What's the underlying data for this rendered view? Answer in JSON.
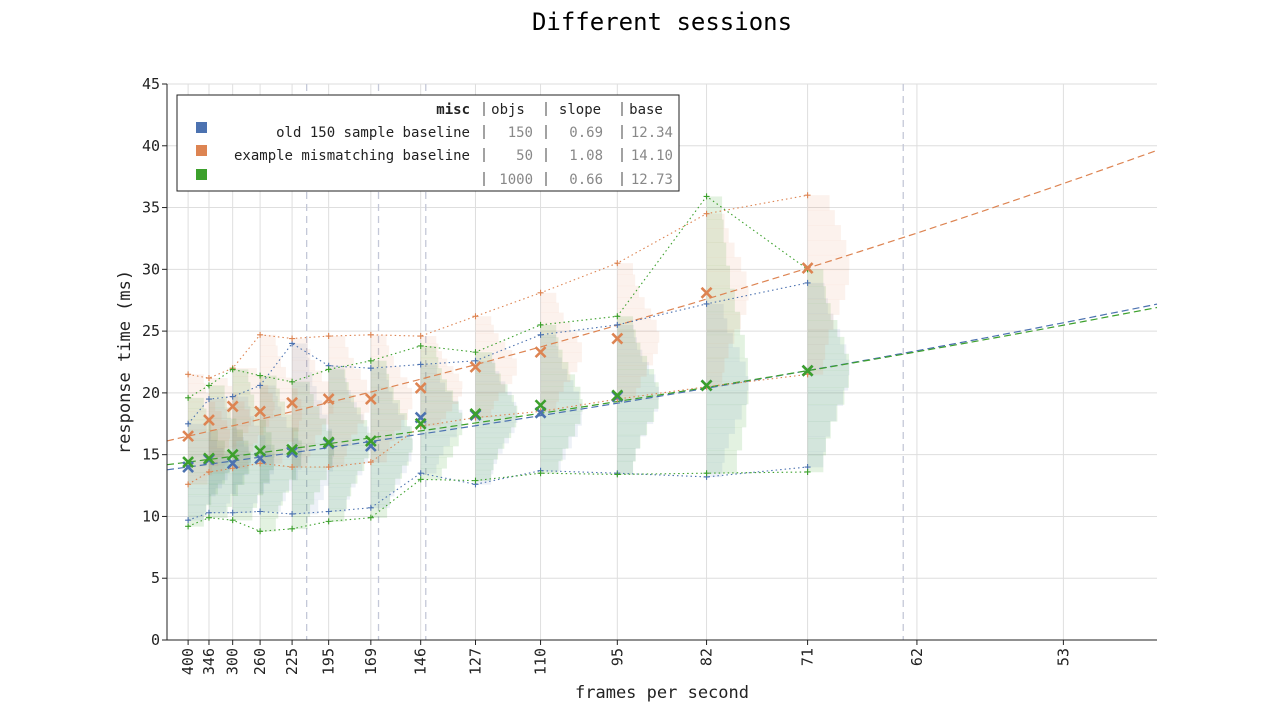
{
  "chart_data": {
    "type": "scatter",
    "title": "Different sessions",
    "xlabel": "frames per second",
    "ylabel": "response time (ms)",
    "ylim": [
      0,
      45
    ],
    "yticks": [
      0,
      5,
      10,
      15,
      20,
      25,
      30,
      35,
      40,
      45
    ],
    "x_scale": "reciprocal",
    "xticks": [
      400,
      346,
      300,
      260,
      225,
      195,
      169,
      146,
      127,
      110,
      95,
      82,
      71,
      62,
      53
    ],
    "xlim": [
      475,
      48.5
    ],
    "grid": true,
    "legend_position": "top-left",
    "legend_header": {
      "label": "misc",
      "objs": "objs",
      "slope": "slope",
      "base": "base"
    },
    "vlines": [
      212,
      165,
      144,
      63
    ],
    "colors": {
      "blue": "#4c72b0",
      "orange": "#dd8452",
      "green": "#3ca02c"
    },
    "series": [
      {
        "name": "old 150 sample baseline",
        "color": "#4c72b0",
        "objs": "150",
        "slope": "0.69",
        "base": "12.34",
        "fit_offset": 12.34,
        "fit_slope": 0.69,
        "x": [
          400,
          346,
          300,
          260,
          225,
          195,
          169,
          146,
          127,
          110,
          95,
          82,
          71
        ],
        "median": [
          14.0,
          14.6,
          14.3,
          14.7,
          15.2,
          15.9,
          15.7,
          18.0,
          18.2,
          18.4,
          19.7,
          20.6,
          21.8
        ],
        "upper": [
          17.5,
          19.5,
          19.7,
          20.6,
          24.0,
          22.2,
          22.0,
          22.3,
          22.6,
          24.7,
          25.5,
          27.2,
          28.9
        ],
        "lower": [
          9.7,
          10.3,
          10.3,
          10.4,
          10.2,
          10.4,
          10.7,
          13.5,
          12.6,
          13.7,
          13.5,
          13.2,
          14.0
        ]
      },
      {
        "name": "example mismatching baseline",
        "color": "#dd8452",
        "objs": "50",
        "slope": "1.08",
        "base": "14.10",
        "fit_offset": 14.1,
        "fit_slope": 1.08,
        "x": [
          400,
          346,
          300,
          260,
          225,
          195,
          169,
          146,
          127,
          110,
          95,
          82,
          71
        ],
        "median": [
          16.5,
          17.8,
          18.9,
          18.5,
          19.2,
          19.5,
          19.5,
          20.4,
          22.1,
          23.3,
          24.4,
          28.1,
          30.1
        ],
        "upper": [
          21.5,
          21.2,
          22.0,
          24.7,
          24.4,
          24.6,
          24.7,
          24.6,
          26.2,
          28.1,
          30.5,
          34.5,
          36.0
        ],
        "lower": [
          12.6,
          13.6,
          13.9,
          14.3,
          14.0,
          14.0,
          14.4,
          17.3,
          18.0,
          18.5,
          19.5,
          20.5,
          21.5
        ]
      },
      {
        "name": "",
        "color": "#3ca02c",
        "objs": "1000",
        "slope": "0.66",
        "base": "12.73",
        "fit_offset": 12.73,
        "fit_slope": 0.66,
        "x": [
          400,
          346,
          300,
          260,
          225,
          195,
          169,
          146,
          127,
          110,
          95,
          82,
          71
        ],
        "median": [
          14.4,
          14.7,
          15.0,
          15.3,
          15.4,
          16.0,
          16.1,
          17.5,
          18.3,
          19.0,
          19.8,
          20.6,
          21.8
        ],
        "upper": [
          19.6,
          20.6,
          21.9,
          21.4,
          20.9,
          21.9,
          22.6,
          23.8,
          23.3,
          25.5,
          26.2,
          35.9,
          30.0
        ],
        "lower": [
          9.2,
          9.9,
          9.7,
          8.8,
          9.0,
          9.6,
          9.9,
          13.0,
          12.9,
          13.5,
          13.4,
          13.5,
          13.6
        ]
      }
    ]
  }
}
